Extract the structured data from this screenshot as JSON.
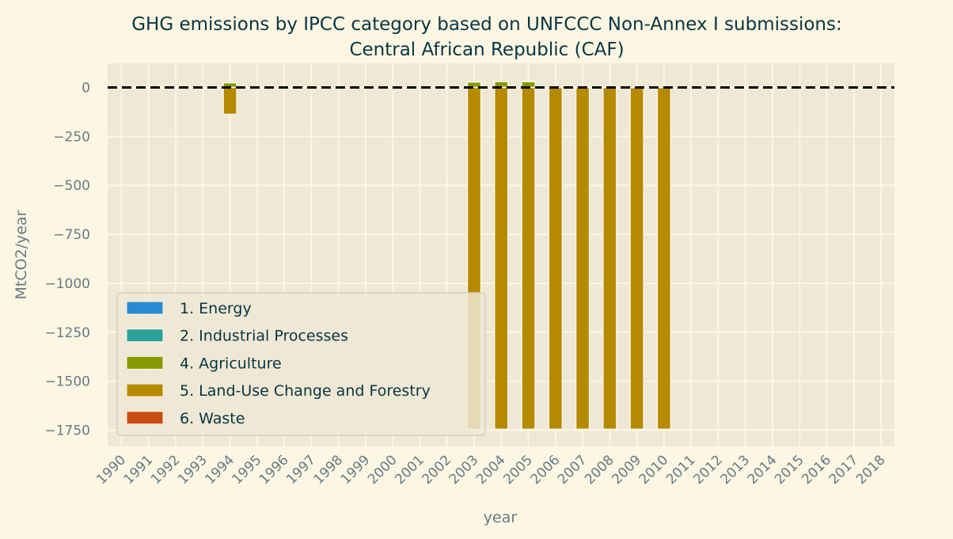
{
  "chart_data": {
    "type": "bar",
    "stacked": true,
    "title_line1": "GHG emissions by IPCC category based on UNFCCC Non-Annex I submissions:",
    "title_line2": "Central African Republic (CAF)",
    "xlabel": "year",
    "ylabel": "MtCO2/year",
    "ylim": [
      -1840,
      130
    ],
    "yticks": [
      0,
      -250,
      -500,
      -750,
      -1000,
      -1250,
      -1500,
      -1750
    ],
    "grid": true,
    "legend_position": "lower-left",
    "zero_line": {
      "style": "dashed",
      "color": "#000000"
    },
    "categories": [
      "1990",
      "1991",
      "1992",
      "1993",
      "1994",
      "1995",
      "1996",
      "1997",
      "1998",
      "1999",
      "2000",
      "2001",
      "2002",
      "2003",
      "2004",
      "2005",
      "2006",
      "2007",
      "2008",
      "2009",
      "2010",
      "2011",
      "2012",
      "2013",
      "2014",
      "2015",
      "2016",
      "2017",
      "2018"
    ],
    "series": [
      {
        "name": "1. Energy",
        "color": "#268bd2",
        "values": [
          null,
          null,
          null,
          null,
          0.4,
          null,
          null,
          null,
          null,
          null,
          null,
          null,
          null,
          1,
          1,
          1,
          1,
          1,
          1,
          1,
          1,
          null,
          null,
          null,
          null,
          null,
          null,
          null,
          null
        ]
      },
      {
        "name": "2. Industrial Processes",
        "color": "#2aa198",
        "values": [
          null,
          null,
          null,
          null,
          0.01,
          null,
          null,
          null,
          null,
          null,
          null,
          null,
          null,
          0.01,
          0.01,
          0.01,
          0.01,
          0.01,
          0.01,
          0.01,
          0.01,
          null,
          null,
          null,
          null,
          null,
          null,
          null,
          null
        ]
      },
      {
        "name": "4. Agriculture",
        "color": "#859900",
        "values": [
          null,
          null,
          null,
          null,
          25,
          null,
          null,
          null,
          null,
          null,
          null,
          null,
          null,
          28,
          30,
          30,
          null,
          null,
          null,
          null,
          null,
          null,
          null,
          null,
          null,
          null,
          null,
          null,
          null
        ]
      },
      {
        "name": "5. Land-Use Change and Forestry",
        "color": "#b58900",
        "values": [
          null,
          null,
          null,
          null,
          -137,
          null,
          null,
          null,
          null,
          null,
          null,
          null,
          null,
          -1745,
          -1745,
          -1745,
          -1745,
          -1745,
          -1745,
          -1745,
          -1745,
          null,
          null,
          null,
          null,
          null,
          null,
          null,
          null
        ]
      },
      {
        "name": "6. Waste",
        "color": "#cb4b16",
        "values": [
          null,
          null,
          null,
          null,
          0.3,
          null,
          null,
          null,
          null,
          null,
          null,
          null,
          null,
          0.5,
          0.5,
          0.5,
          0.5,
          0.5,
          0.5,
          0.5,
          0.5,
          null,
          null,
          null,
          null,
          null,
          null,
          null,
          null
        ]
      }
    ]
  }
}
